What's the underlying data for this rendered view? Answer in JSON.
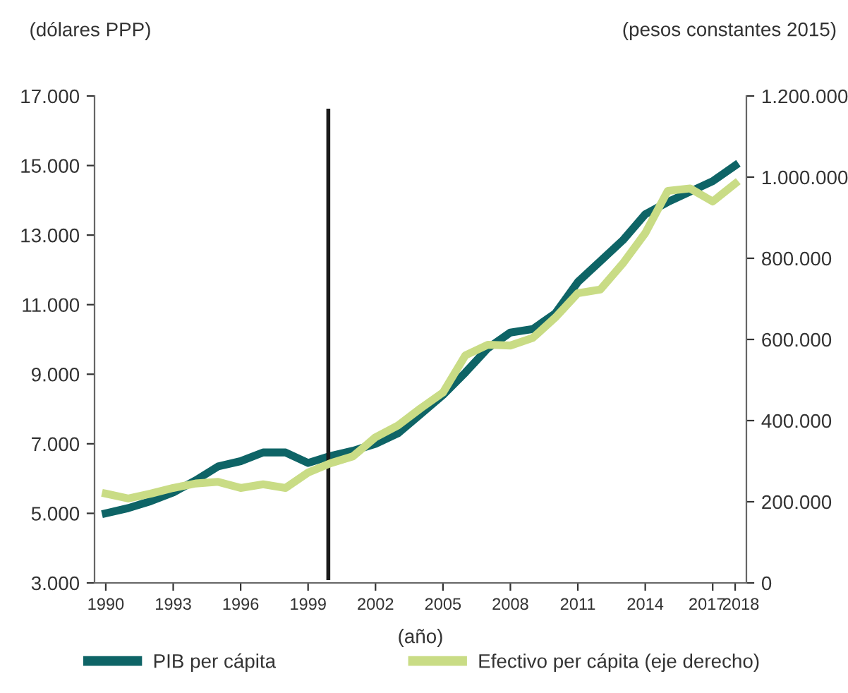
{
  "chart_data": {
    "type": "line",
    "ylabel": "(dólares PPP)",
    "y2label": "(pesos constantes 2015)",
    "xlabel": "(año)",
    "x": [
      1990,
      1991,
      1992,
      1993,
      1994,
      1995,
      1996,
      1997,
      1998,
      1999,
      2000,
      2001,
      2002,
      2003,
      2004,
      2005,
      2006,
      2007,
      2008,
      2009,
      2010,
      2011,
      2012,
      2013,
      2014,
      2015,
      2016,
      2017,
      2018
    ],
    "series": [
      {
        "name": "PIB per cápita",
        "color": "#0e6466",
        "values": [
          5000,
          5150,
          5350,
          5600,
          5950,
          6350,
          6500,
          6750,
          6750,
          6450,
          6650,
          6800,
          7000,
          7300,
          7850,
          8400,
          9050,
          9750,
          10200,
          10300,
          10750,
          11650,
          12250,
          12850,
          13600,
          13950,
          14250,
          14550,
          15000
        ]
      },
      {
        "name": "Efectivo per cápita (eje derecho)",
        "color": "#c9dc85",
        "axis": "y2",
        "values": [
          220000,
          208000,
          220000,
          234000,
          245000,
          249000,
          234000,
          243000,
          234000,
          272000,
          295000,
          312000,
          359000,
          388000,
          430000,
          469000,
          561000,
          587000,
          585000,
          604000,
          654000,
          714000,
          723000,
          787000,
          862000,
          966000,
          972000,
          940000,
          984000
        ]
      }
    ],
    "xlim": [
      1989.5,
      2018.5
    ],
    "xticks": [
      1990,
      1993,
      1996,
      1999,
      2002,
      2005,
      2008,
      2011,
      2014,
      2017,
      2018
    ],
    "ylim": [
      3000,
      17000
    ],
    "yticks": [
      {
        "value": 3000,
        "label": "3.000"
      },
      {
        "value": 5000,
        "label": "5.000"
      },
      {
        "value": 7000,
        "label": "7.000"
      },
      {
        "value": 9000,
        "label": "9.000"
      },
      {
        "value": 11000,
        "label": "11.000"
      },
      {
        "value": 13000,
        "label": "13.000"
      },
      {
        "value": 15000,
        "label": "15.000"
      },
      {
        "value": 17000,
        "label": "17.000"
      }
    ],
    "y2lim": [
      0,
      1200000
    ],
    "y2ticks": [
      0,
      {
        "value": 200000,
        "label": "200.000"
      },
      {
        "value": 400000,
        "label": "400.000"
      },
      {
        "value": 600000,
        "label": "600.000"
      },
      {
        "value": 800000,
        "label": "800.000"
      },
      {
        "value": 1000000,
        "label": "1.000.000"
      },
      {
        "value": 1200000,
        "label": "1.200.000"
      }
    ],
    "ref_lines": [
      {
        "axis": "x",
        "value": 1999.9,
        "color": "#1a1a1a"
      }
    ],
    "grid": false,
    "legend": "bottom",
    "marker": "none",
    "line_style": "solid"
  }
}
